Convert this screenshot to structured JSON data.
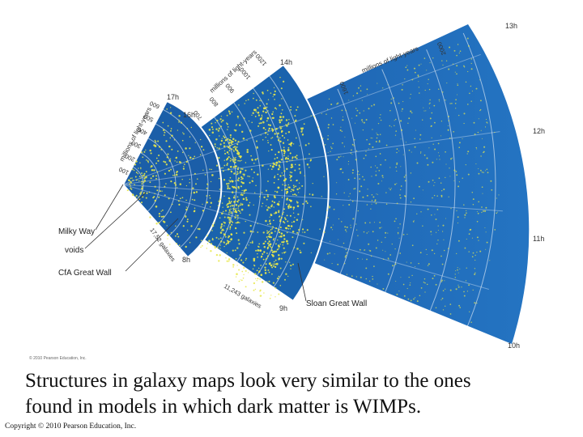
{
  "figure": {
    "inner_scale_title": "millions of light-years",
    "inner_scale_ticks": [
      "100",
      "200",
      "300",
      "400",
      "500",
      "600"
    ],
    "middle_scale_title": "millions of light-years",
    "middle_scale_ticks": [
      "700",
      "800",
      "900",
      "1000",
      "1200"
    ],
    "outer_scale_title": "millions of light-years",
    "outer_scale_ticks": [
      "1600",
      "2000"
    ],
    "hour_labels": {
      "h17": "17h",
      "h16": "16h",
      "h14": "14h",
      "h13": "13h",
      "h12": "12h",
      "h11": "11h",
      "h10": "10h",
      "h9": "9h",
      "h8": "8h"
    },
    "callouts": {
      "milky_way": "Milky Way",
      "voids": "voids",
      "cfa_great_wall": "CfA Great Wall",
      "sloan_great_wall": "Sloan Great Wall"
    },
    "inner_galaxy_count": "17,52 galaxies",
    "middle_galaxy_count": "11,243 galaxies",
    "image_credit": "© 2010 Pearson Education, Inc."
  },
  "caption": {
    "line1": "Structures in galaxy maps look very similar to the ones",
    "line2": "found in models in which dark matter is WIMPs."
  },
  "copyright": "Copyright © 2010 Pearson Education, Inc.",
  "colors": {
    "outer_fan": "#1f6fba",
    "middle_fan": "#1a63ad",
    "inner_fan": "#1b5ea8",
    "galaxy_dot": "#e8e84a"
  }
}
